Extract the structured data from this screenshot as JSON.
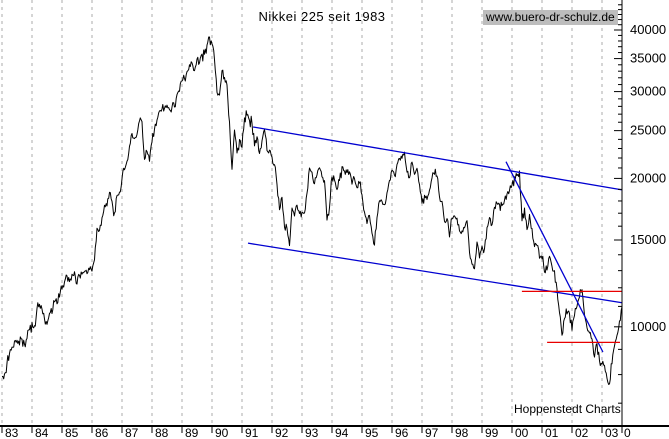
{
  "colors": {
    "price": "#000000",
    "trend": "#0000d0",
    "support": "#e80000",
    "grid": "#ababab",
    "axis": "#000000",
    "badge_bg": "#bdbdbd"
  },
  "chart_data": {
    "type": "line",
    "title": "Nikkei 225 seit 1983",
    "watermark": "www.buero-dr-schulz.de",
    "credit": "Hoppenstedt Charts",
    "y_scale": "log",
    "grid": "vertical-dashed-yearly",
    "xlim": [
      1983.0,
      2003.67
    ],
    "ylim": [
      6300,
      45900
    ],
    "x_axis": {
      "labels": [
        "83",
        "84",
        "85",
        "86",
        "87",
        "88",
        "89",
        "90",
        "91",
        "92",
        "93",
        "94",
        "95",
        "96",
        "97",
        "98",
        "99",
        "00",
        "01",
        "02",
        "03"
      ],
      "partial_next_label": "0"
    },
    "y_axis": {
      "ticks": [
        40000,
        35000,
        30000,
        25000,
        20000,
        15000,
        10000
      ],
      "minor_tick_step": 1000,
      "minor_tick_range": [
        7000,
        45000
      ],
      "side": "right"
    },
    "series": [
      {
        "name": "Nikkei 225",
        "x_start": 1983.0,
        "x_step": 0.083333,
        "resolution": "monthly",
        "values": [
          7950,
          8050,
          8400,
          8800,
          9050,
          9300,
          9350,
          9200,
          9400,
          9250,
          9500,
          9890,
          10150,
          10050,
          10900,
          11100,
          10800,
          10350,
          10100,
          10600,
          10650,
          11250,
          11150,
          11540,
          11990,
          12320,
          12590,
          12430,
          12790,
          12880,
          12260,
          12720,
          12730,
          13040,
          12840,
          13110,
          13020,
          13640,
          15860,
          15820,
          16670,
          17650,
          17510,
          18820,
          17850,
          16910,
          18320,
          18700,
          20020,
          20770,
          21570,
          23270,
          24900,
          24180,
          24490,
          26030,
          26010,
          21910,
          22690,
          21560,
          23720,
          25240,
          26260,
          27510,
          27420,
          27770,
          28060,
          27370,
          27920,
          27980,
          29580,
          30160,
          31580,
          31990,
          32840,
          33710,
          34270,
          32950,
          34950,
          34430,
          35640,
          35550,
          37270,
          38920,
          37190,
          34590,
          29980,
          29580,
          33130,
          31940,
          31040,
          25980,
          20980,
          25190,
          22450,
          23850,
          23290,
          26290,
          27000,
          26110,
          25790,
          23290,
          24120,
          22340,
          23920,
          25220,
          22690,
          22980,
          22020,
          21340,
          19350,
          17390,
          18350,
          15950,
          15910,
          14560,
          17400,
          16770,
          17680,
          16920,
          17020,
          16950,
          18590,
          20920,
          20550,
          19590,
          20380,
          21030,
          20100,
          19700,
          16410,
          17420,
          20230,
          19990,
          19110,
          19730,
          20970,
          20640,
          20450,
          20630,
          19560,
          19990,
          19080,
          19720,
          18650,
          17050,
          16140,
          16800,
          15440,
          14600,
          16680,
          18120,
          17910,
          17650,
          18550,
          19870,
          20810,
          20130,
          21410,
          22040,
          21940,
          22530,
          20700,
          20170,
          21560,
          20470,
          21020,
          19360,
          17870,
          18560,
          18000,
          18930,
          20070,
          20600,
          20330,
          18230,
          17890,
          16460,
          16640,
          15260,
          16630,
          16830,
          16530,
          15640,
          15670,
          15830,
          16380,
          14110,
          13410,
          13000,
          14880,
          13840,
          14500,
          14370,
          15840,
          16700,
          16110,
          17530,
          17860,
          17630,
          17610,
          17940,
          18560,
          18930,
          19540,
          19960,
          20340,
          20800,
          16330,
          17410,
          15730,
          16860,
          15750,
          14540,
          14650,
          13790,
          13840,
          12880,
          13000,
          13930,
          13260,
          12970,
          11860,
          10710,
          9600,
          10370,
          10700,
          10540,
          9920,
          10590,
          11020,
          11490,
          11930,
          10620,
          9880,
          9620,
          9380,
          8640,
          9220,
          8580,
          8340,
          8360,
          7870,
          7650,
          8420,
          9080,
          9560,
          10340,
          10900
        ]
      }
    ],
    "trend_lines": [
      {
        "name": "channel-upper",
        "points": [
          [
            1991.37,
            25430
          ],
          [
            2003.67,
            18960
          ]
        ]
      },
      {
        "name": "channel-lower",
        "points": [
          [
            1991.2,
            14780
          ],
          [
            2003.67,
            11190
          ]
        ]
      },
      {
        "name": "downtrend-steep",
        "points": [
          [
            1999.8,
            21620
          ],
          [
            2003.03,
            8890
          ]
        ]
      }
    ],
    "support_lines": [
      {
        "name": "resistance-11800",
        "value": 11800,
        "x_from": 2000.33,
        "x_to": 2003.67
      },
      {
        "name": "support-9300",
        "value": 9300,
        "x_from": 2001.17,
        "x_to": 2003.6
      }
    ]
  }
}
